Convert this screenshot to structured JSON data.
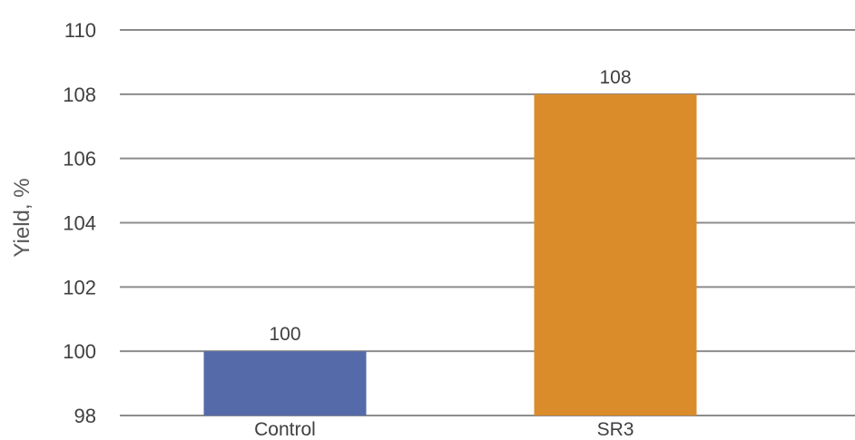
{
  "chart_data": {
    "type": "bar",
    "categories": [
      "Control",
      "SR3"
    ],
    "series": [
      {
        "values": [
          100,
          108
        ],
        "colors": [
          "#556aa8",
          "#da8c2b"
        ]
      }
    ],
    "data_labels": [
      "100",
      "108"
    ],
    "title": "",
    "xlabel": "",
    "ylabel": "Yield, %",
    "ylim": [
      98,
      110
    ],
    "yticks": [
      98,
      100,
      102,
      104,
      106,
      108,
      110
    ],
    "grid": true,
    "legend": "none"
  }
}
